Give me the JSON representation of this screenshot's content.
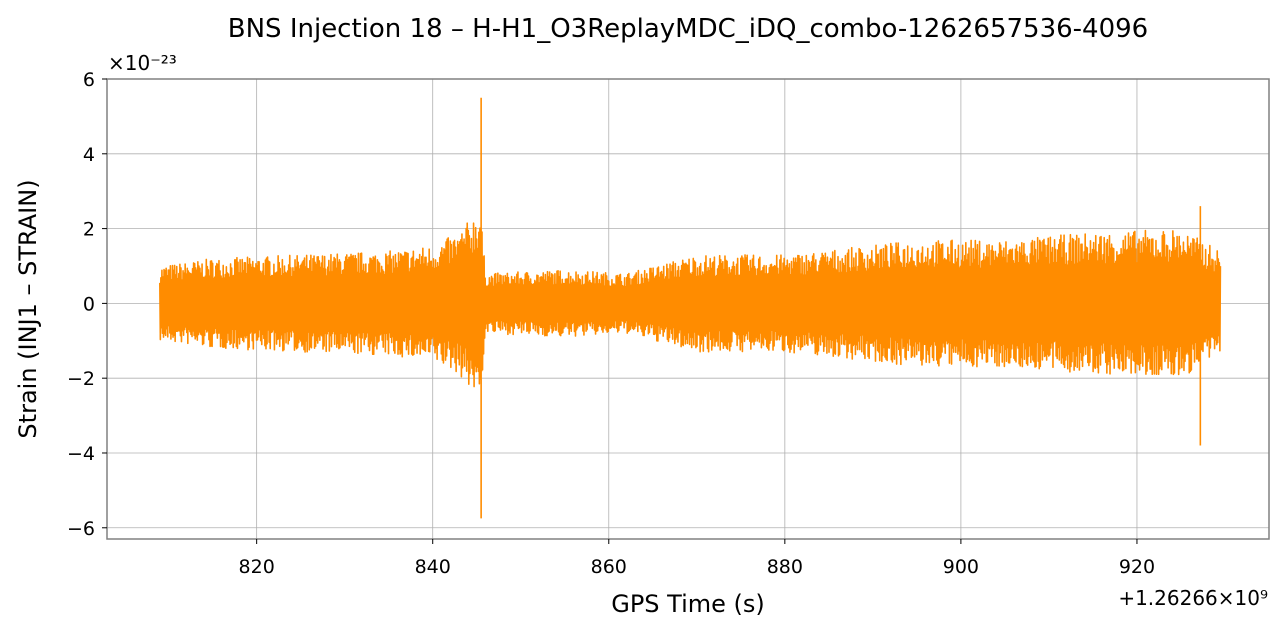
{
  "chart_data": {
    "type": "line",
    "title": "BNS Injection 18 – H-H1_O3ReplayMDC_iDQ_combo-1262657536-4096",
    "xlabel": "GPS Time (s)",
    "ylabel": "Strain (INJ1 – STRAIN)",
    "x_offset_label": "+1.26266×10⁹",
    "y_scale_label": "×10⁻²³",
    "xlim": [
      803,
      935
    ],
    "ylim": [
      -6.3,
      6.0
    ],
    "x_ticks": [
      820,
      840,
      860,
      880,
      900,
      920
    ],
    "y_ticks": [
      -6,
      -4,
      -2,
      0,
      2,
      4,
      6
    ],
    "y_tick_labels": [
      "−6",
      "−4",
      "−2",
      "0",
      "2",
      "4",
      "6"
    ],
    "grid": true,
    "series": [
      {
        "color": "#ff8c00",
        "x_range": [
          809,
          929.5
        ],
        "envelope": [
          {
            "x": 809,
            "amp": 1.0
          },
          {
            "x": 815,
            "amp": 1.2
          },
          {
            "x": 825,
            "amp": 1.3
          },
          {
            "x": 835,
            "amp": 1.4
          },
          {
            "x": 840,
            "amp": 1.55
          },
          {
            "x": 843,
            "amp": 1.9
          },
          {
            "x": 845.4,
            "amp": 2.6
          },
          {
            "x": 846,
            "amp": 0.8
          },
          {
            "x": 855,
            "amp": 0.9
          },
          {
            "x": 862,
            "amp": 0.8
          },
          {
            "x": 870,
            "amp": 1.3
          },
          {
            "x": 880,
            "amp": 1.3
          },
          {
            "x": 888,
            "amp": 1.5
          },
          {
            "x": 895,
            "amp": 1.7
          },
          {
            "x": 905,
            "amp": 1.7
          },
          {
            "x": 915,
            "amp": 1.9
          },
          {
            "x": 925,
            "amp": 2.0
          },
          {
            "x": 929.5,
            "amp": 1.4
          }
        ],
        "spikes": [
          {
            "x": 845.5,
            "max": 5.5,
            "min": -5.75
          },
          {
            "x": 927.2,
            "max": 2.6,
            "min": -3.8
          }
        ]
      }
    ]
  },
  "colors": {
    "line": "#ff8c00",
    "grid": "#b0b0b0",
    "axes": "#808080"
  }
}
